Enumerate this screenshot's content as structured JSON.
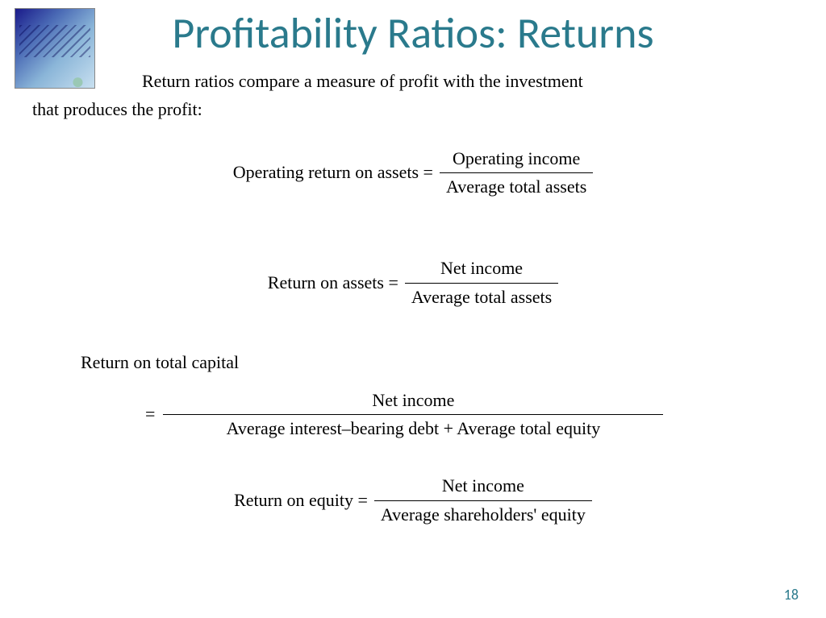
{
  "slide": {
    "title": "Profitability Ratios: Returns",
    "intro_start": "Return ratios compare a measure of profit with the investment",
    "intro_cont": "that produces the profit:",
    "page_number": "18",
    "title_color": "#2a7a8c",
    "bullet_color": "#9ac8b5",
    "text_color": "#000000",
    "background_color": "#ffffff",
    "corner_image_colors": [
      "#1a1a8a",
      "#4a6ab5",
      "#8ab5d8",
      "#c8e0f0"
    ],
    "title_fontsize": 54,
    "body_fontsize": 22
  },
  "formulas": {
    "f1": {
      "label": "Operating return on assets =",
      "numerator": "Operating income",
      "denominator": "Average total assets"
    },
    "f2": {
      "label": "Return on assets =",
      "numerator": "Net income",
      "denominator": "Average total assets"
    },
    "f3": {
      "label": "Return on total capital",
      "eq": "=",
      "numerator": "Net income",
      "denominator": "Average interest–bearing debt + Average total equity"
    },
    "f4": {
      "label": "Return on equity =",
      "numerator": "Net income",
      "denominator": "Average shareholders' equity"
    }
  }
}
